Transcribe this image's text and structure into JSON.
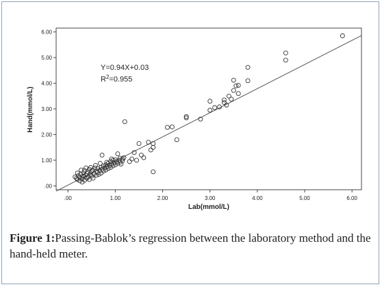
{
  "chart_data": {
    "type": "scatter",
    "xlabel": "Lab(mmol/L)",
    "ylabel": "Hand(mmol/L)",
    "xlim": [
      -0.25,
      6.2
    ],
    "ylim": [
      -0.15,
      6.15
    ],
    "x_ticks": [
      0,
      1,
      2,
      3,
      4,
      5,
      6
    ],
    "x_tick_labels": [
      ".00",
      "1.00",
      "2.00",
      "3.00",
      "4.00",
      "5.00",
      "6.00"
    ],
    "y_ticks": [
      0,
      1,
      2,
      3,
      4,
      5,
      6
    ],
    "y_tick_labels": [
      ".00",
      "1.00",
      "2.00",
      "3.00",
      "4.00",
      "5.00",
      "6.00"
    ],
    "grid": false,
    "legend": "none",
    "marker": "open-circle",
    "annotation_equation": "Y=0.94X+0.03",
    "annotation_r2_prefix": "R",
    "annotation_r2_sup": "2",
    "annotation_r2_value": "=0.955",
    "regression_line": {
      "slope": 0.94,
      "intercept": 0.03,
      "x_range": [
        -0.25,
        6.2
      ]
    },
    "points": [
      [
        0.15,
        0.35
      ],
      [
        0.18,
        0.3
      ],
      [
        0.2,
        0.25
      ],
      [
        0.22,
        0.4
      ],
      [
        0.25,
        0.2
      ],
      [
        0.25,
        0.33
      ],
      [
        0.27,
        0.45
      ],
      [
        0.3,
        0.28
      ],
      [
        0.3,
        0.15
      ],
      [
        0.32,
        0.38
      ],
      [
        0.33,
        0.5
      ],
      [
        0.35,
        0.22
      ],
      [
        0.35,
        0.6
      ],
      [
        0.37,
        0.42
      ],
      [
        0.4,
        0.3
      ],
      [
        0.4,
        0.48
      ],
      [
        0.42,
        0.55
      ],
      [
        0.43,
        0.35
      ],
      [
        0.45,
        0.25
      ],
      [
        0.45,
        0.65
      ],
      [
        0.47,
        0.45
      ],
      [
        0.5,
        0.38
      ],
      [
        0.5,
        0.55
      ],
      [
        0.52,
        0.62
      ],
      [
        0.53,
        0.3
      ],
      [
        0.55,
        0.48
      ],
      [
        0.57,
        0.7
      ],
      [
        0.6,
        0.42
      ],
      [
        0.6,
        0.58
      ],
      [
        0.62,
        0.52
      ],
      [
        0.63,
        0.68
      ],
      [
        0.65,
        0.45
      ],
      [
        0.67,
        0.6
      ],
      [
        0.7,
        0.72
      ],
      [
        0.7,
        0.5
      ],
      [
        0.72,
        0.65
      ],
      [
        0.75,
        0.58
      ],
      [
        0.75,
        0.78
      ],
      [
        0.78,
        0.7
      ],
      [
        0.8,
        0.62
      ],
      [
        0.8,
        0.82
      ],
      [
        0.82,
        0.75
      ],
      [
        0.85,
        0.68
      ],
      [
        0.85,
        0.88
      ],
      [
        0.88,
        0.8
      ],
      [
        0.9,
        0.72
      ],
      [
        0.9,
        0.95
      ],
      [
        0.92,
        0.85
      ],
      [
        0.95,
        0.78
      ],
      [
        0.95,
        1.0
      ],
      [
        0.98,
        0.9
      ],
      [
        1.0,
        0.82
      ],
      [
        1.0,
        1.02
      ],
      [
        1.02,
        0.95
      ],
      [
        1.05,
        0.88
      ],
      [
        1.05,
        1.25
      ],
      [
        1.08,
        1.0
      ],
      [
        1.1,
        0.92
      ],
      [
        1.1,
        1.08
      ],
      [
        1.12,
        0.85
      ],
      [
        1.15,
        1.05
      ],
      [
        1.15,
        0.98
      ],
      [
        1.18,
        1.1
      ],
      [
        0.28,
        0.62
      ],
      [
        0.38,
        0.7
      ],
      [
        0.48,
        0.72
      ],
      [
        0.58,
        0.8
      ],
      [
        0.68,
        0.88
      ],
      [
        0.72,
        1.2
      ],
      [
        0.82,
        0.92
      ],
      [
        0.92,
        1.05
      ],
      [
        0.2,
        0.5
      ],
      [
        1.2,
        2.5
      ],
      [
        1.3,
        0.95
      ],
      [
        1.35,
        1.05
      ],
      [
        1.4,
        1.3
      ],
      [
        1.45,
        1.0
      ],
      [
        1.5,
        1.65
      ],
      [
        1.55,
        1.2
      ],
      [
        1.6,
        1.1
      ],
      [
        1.7,
        1.7
      ],
      [
        1.75,
        1.4
      ],
      [
        1.8,
        0.55
      ],
      [
        1.8,
        1.5
      ],
      [
        1.8,
        1.65
      ],
      [
        2.1,
        2.28
      ],
      [
        2.2,
        2.3
      ],
      [
        2.3,
        1.8
      ],
      [
        2.5,
        2.65
      ],
      [
        2.5,
        2.7
      ],
      [
        2.8,
        2.6
      ],
      [
        3.0,
        2.95
      ],
      [
        3.0,
        3.3
      ],
      [
        3.1,
        3.05
      ],
      [
        3.2,
        3.08
      ],
      [
        3.3,
        3.25
      ],
      [
        3.3,
        3.35
      ],
      [
        3.35,
        3.15
      ],
      [
        3.4,
        3.5
      ],
      [
        3.45,
        3.38
      ],
      [
        3.5,
        3.72
      ],
      [
        3.5,
        4.12
      ],
      [
        3.55,
        3.9
      ],
      [
        3.6,
        3.92
      ],
      [
        3.6,
        3.6
      ],
      [
        3.8,
        4.62
      ],
      [
        3.8,
        4.1
      ],
      [
        4.6,
        5.18
      ],
      [
        4.6,
        4.9
      ],
      [
        5.8,
        5.85
      ]
    ]
  },
  "figure": {
    "caption_label": "Figure 1:",
    "caption_text": "Passing-Bablok’s regression between the laboratory method and the hand-held meter."
  }
}
